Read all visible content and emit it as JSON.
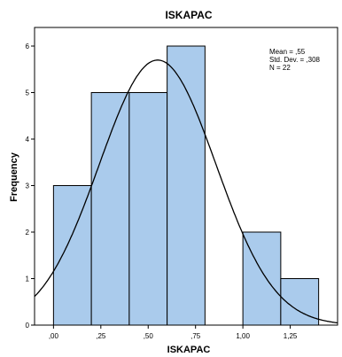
{
  "chart_data": {
    "type": "bar",
    "title": "ISKAPAC",
    "xlabel": "ISKAPAC",
    "ylabel": "Frequency",
    "bins": [
      {
        "from": 0.0,
        "to": 0.2,
        "count": 3
      },
      {
        "from": 0.2,
        "to": 0.4,
        "count": 5
      },
      {
        "from": 0.4,
        "to": 0.6,
        "count": 5
      },
      {
        "from": 0.6,
        "to": 0.8,
        "count": 6
      },
      {
        "from": 0.8,
        "to": 1.0,
        "count": 0
      },
      {
        "from": 1.0,
        "to": 1.2,
        "count": 2
      },
      {
        "from": 1.2,
        "to": 1.4,
        "count": 1
      }
    ],
    "xlim": [
      -0.1,
      1.5
    ],
    "ylim": [
      0,
      6.4
    ],
    "x_ticks": [
      {
        "value": 0.0,
        "label": ",00"
      },
      {
        "value": 0.25,
        "label": ",25"
      },
      {
        "value": 0.5,
        "label": ",50"
      },
      {
        "value": 0.75,
        "label": ",75"
      },
      {
        "value": 1.0,
        "label": "1,00"
      },
      {
        "value": 1.25,
        "label": "1,25"
      }
    ],
    "y_ticks": [
      {
        "value": 0,
        "label": "0"
      },
      {
        "value": 1,
        "label": "1"
      },
      {
        "value": 2,
        "label": "2"
      },
      {
        "value": 3,
        "label": "3"
      },
      {
        "value": 4,
        "label": "4"
      },
      {
        "value": 5,
        "label": "5"
      },
      {
        "value": 6,
        "label": "6"
      }
    ],
    "normal_curve": {
      "mean": 0.55,
      "sd": 0.308,
      "n": 22,
      "bin_width": 0.2
    },
    "stats": {
      "mean": "Mean = ,55",
      "std_dev": "Std. Dev. = ,308",
      "n": "N = 22"
    },
    "bar_color": "#aacbec",
    "bar_stroke": "#000000",
    "curve_color": "#000000",
    "grid": false
  }
}
